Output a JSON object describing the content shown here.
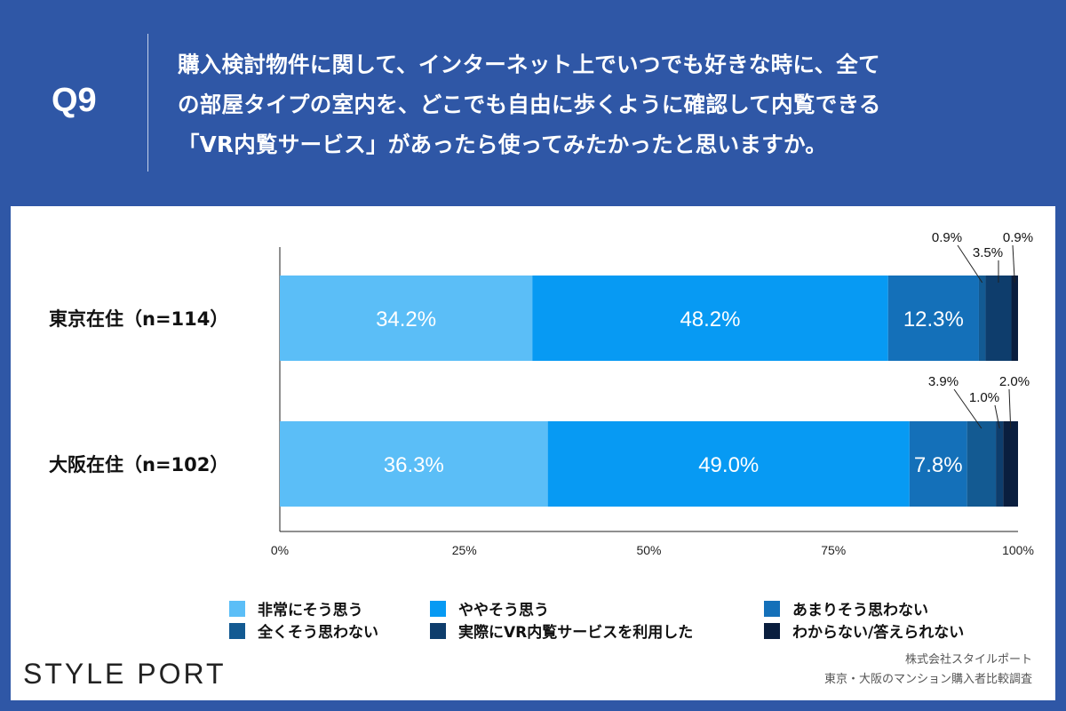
{
  "question": {
    "number": "Q9",
    "lines": [
      "購入検討物件に関して、インターネット上でいつでも好きな時に、全て",
      "の部屋タイプの室内を、どこでも自由に歩くように確認して内覧できる",
      "「VR内覧サービス」があったら使ってみたかったと思いますか。"
    ]
  },
  "chart_data": {
    "type": "bar",
    "orientation": "horizontal-stacked-100",
    "categories": [
      "東京在住（n=114）",
      "大阪在住（n=102）"
    ],
    "series": [
      {
        "name": "非常にそう思う",
        "values": [
          34.2,
          36.3
        ],
        "color": "#5bbef7"
      },
      {
        "name": "ややそう思う",
        "values": [
          48.2,
          49.0
        ],
        "color": "#079af3"
      },
      {
        "name": "あまりそう思わない",
        "values": [
          12.3,
          7.8
        ],
        "color": "#1470b9"
      },
      {
        "name": "全くそう思わない",
        "values": [
          0.9,
          3.9
        ],
        "color": "#135a92"
      },
      {
        "name": "実際にVR内覧サービスを利用した",
        "values": [
          3.5,
          1.0
        ],
        "color": "#0e3d6c"
      },
      {
        "name": "わからない/答えられない",
        "values": [
          0.9,
          2.0
        ],
        "color": "#0a1e3e"
      }
    ],
    "xlim": [
      0,
      100
    ],
    "xticks": [
      "0%",
      "25%",
      "50%",
      "75%",
      "100%"
    ],
    "labels_inside": [
      [
        "34.2%",
        "48.2%",
        "12.3%"
      ],
      [
        "36.3%",
        "49.0%",
        "7.8%"
      ]
    ],
    "labels_callout": [
      [
        "0.9%",
        "3.5%",
        "0.9%"
      ],
      [
        "3.9%",
        "1.0%",
        "2.0%"
      ]
    ],
    "legend_position": "bottom"
  },
  "branding": {
    "logo": "STYLE PORT",
    "source_lines": [
      "株式会社スタイルポート",
      "東京・大阪のマンション購入者比較調査"
    ]
  }
}
